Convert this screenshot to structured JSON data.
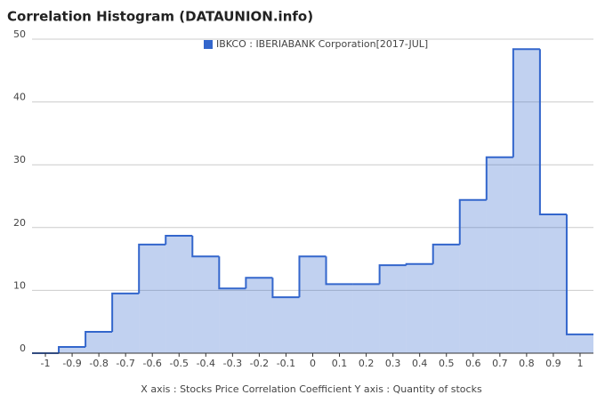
{
  "chart_data": {
    "type": "histogram",
    "title": "Correlation Histogram (DATAUNION.info)",
    "x_axis_label": "X axis : Stocks Price Correlation Coefficient  Y axis : Quantity of stocks",
    "series": [
      {
        "name": "IBKCO : IBERIABANK Corporation[2017-JUL]",
        "color": "#3366cc",
        "counts": [
          0,
          1,
          3.4,
          9.5,
          17.3,
          18.7,
          15.4,
          10.3,
          12,
          8.9,
          15.4,
          11,
          11,
          14,
          14.2,
          17.3,
          24.4,
          31.2,
          48.4,
          22.1,
          3
        ]
      }
    ],
    "bins": [
      -1.05,
      -0.95,
      -0.85,
      -0.75,
      -0.65,
      -0.55,
      -0.45,
      -0.35,
      -0.25,
      -0.15,
      -0.05,
      0.05,
      0.15,
      0.25,
      0.35,
      0.45,
      0.55,
      0.65,
      0.75,
      0.85,
      0.95,
      1.05
    ],
    "xlim": [
      -1.05,
      1.05
    ],
    "xticks": [
      -1,
      -0.9,
      -0.8,
      -0.7,
      -0.6,
      -0.5,
      -0.4,
      -0.3,
      -0.2,
      -0.1,
      0,
      0.1,
      0.2,
      0.3,
      0.4,
      0.5,
      0.6,
      0.7,
      0.8,
      0.9,
      1
    ],
    "ylim": [
      0,
      50
    ],
    "yticks": [
      0,
      10,
      20,
      30,
      40,
      50
    ],
    "grid": true
  }
}
